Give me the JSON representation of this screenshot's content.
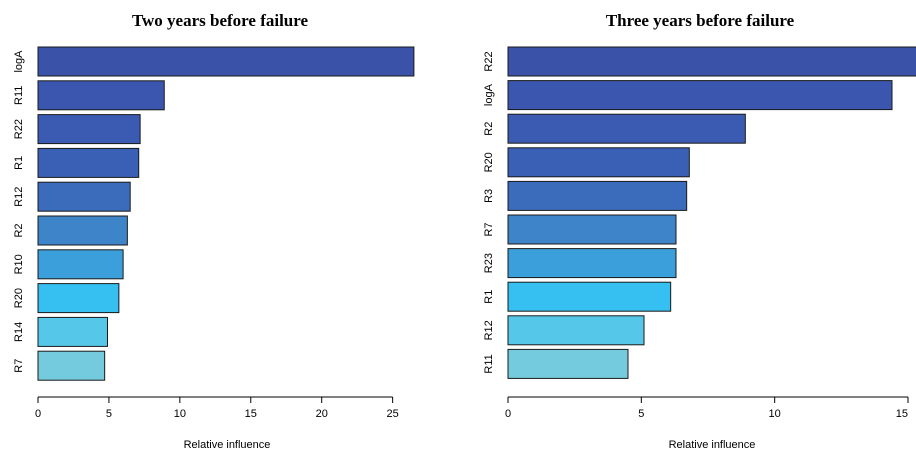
{
  "chart_data": [
    {
      "type": "bar",
      "orientation": "horizontal",
      "title": "Two years before failure",
      "xlabel": "Relative influence",
      "ylabel": "",
      "categories": [
        "logA",
        "R11",
        "R22",
        "R1",
        "R12",
        "R2",
        "R10",
        "R20",
        "R14",
        "R7"
      ],
      "values": [
        26.5,
        8.9,
        7.2,
        7.1,
        6.5,
        6.3,
        6.0,
        5.7,
        4.9,
        4.7
      ],
      "xlim": [
        0,
        27
      ],
      "xticks": [
        0,
        5,
        10,
        15,
        20,
        25
      ],
      "bar_colors": [
        "#3a52a8",
        "#3a56ae",
        "#3b5bb3",
        "#3a60b6",
        "#3b6bbb",
        "#3d84c8",
        "#3b9fdb",
        "#36c0f2",
        "#55c8ea",
        "#74cbdd"
      ],
      "grid": false
    },
    {
      "type": "bar",
      "orientation": "horizontal",
      "title": "Three years before failure",
      "xlabel": "Relative influence",
      "ylabel": "",
      "categories": [
        "R22",
        "logA",
        "R2",
        "R20",
        "R3",
        "R7",
        "R23",
        "R1",
        "R12",
        "R11"
      ],
      "values": [
        15.5,
        14.4,
        8.9,
        6.8,
        6.7,
        6.3,
        6.3,
        6.1,
        5.1,
        4.5
      ],
      "xlim": [
        0,
        15.3
      ],
      "xticks": [
        0,
        5,
        10,
        15
      ],
      "bar_colors": [
        "#3a52a8",
        "#3a56ae",
        "#3b5bb3",
        "#3a60b6",
        "#3b6bbb",
        "#3d84c8",
        "#3b9fdb",
        "#36c0f2",
        "#55c8ea",
        "#74cbdd"
      ],
      "grid": false
    }
  ]
}
